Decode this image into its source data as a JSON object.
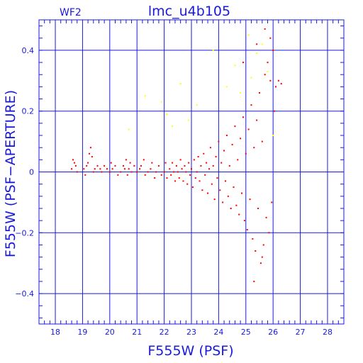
{
  "chart_data": {
    "type": "scatter",
    "chip_label": "WF2",
    "title": "lmc_u4b105",
    "xlabel": "F555W (PSF)",
    "ylabel": "F555W (PSF−APERTURE)",
    "xlim": [
      17.4,
      28.6
    ],
    "ylim": [
      -0.5,
      0.5
    ],
    "x_ticks": [
      "18",
      "19",
      "20",
      "21",
      "22",
      "23",
      "24",
      "25",
      "26",
      "27",
      "28"
    ],
    "y_ticks": [
      "0.4",
      "0.2",
      "0",
      "−0.2",
      "−0.4"
    ],
    "x_tick_values": [
      18,
      19,
      20,
      21,
      22,
      23,
      24,
      25,
      26,
      27,
      28
    ],
    "y_tick_values": [
      0.4,
      0.2,
      0,
      -0.2,
      -0.4
    ],
    "grid": true,
    "minor_ticks": true,
    "axis_color": "#1a1adc",
    "series": [
      {
        "color": "#ff0000",
        "marker_size": 2,
        "points": [
          [
            18.6,
            0.01
          ],
          [
            18.65,
            0.04
          ],
          [
            18.7,
            0.03
          ],
          [
            18.75,
            0.02
          ],
          [
            18.8,
            0.0
          ],
          [
            19.05,
            0.01
          ],
          [
            19.1,
            -0.01
          ],
          [
            19.15,
            0.02
          ],
          [
            19.2,
            0.03
          ],
          [
            19.25,
            0.06
          ],
          [
            19.3,
            0.08
          ],
          [
            19.35,
            0.05
          ],
          [
            19.4,
            0.0
          ],
          [
            19.45,
            0.01
          ],
          [
            19.55,
            0.02
          ],
          [
            19.65,
            0.01
          ],
          [
            19.7,
            0.0
          ],
          [
            19.8,
            0.02
          ],
          [
            19.9,
            0.01
          ],
          [
            20.0,
            0.0
          ],
          [
            20.05,
            0.03
          ],
          [
            20.1,
            0.01
          ],
          [
            20.2,
            0.02
          ],
          [
            20.3,
            -0.01
          ],
          [
            20.4,
            0.0
          ],
          [
            20.5,
            0.02
          ],
          [
            20.55,
            0.01
          ],
          [
            20.6,
            0.04
          ],
          [
            20.65,
            -0.01
          ],
          [
            20.7,
            0.01
          ],
          [
            20.75,
            0.03
          ],
          [
            20.8,
            0.0
          ],
          [
            20.9,
            0.02
          ],
          [
            21.0,
            0.0
          ],
          [
            21.1,
            0.01
          ],
          [
            21.15,
            0.02
          ],
          [
            21.25,
            0.04
          ],
          [
            21.3,
            -0.01
          ],
          [
            21.4,
            0.0
          ],
          [
            21.5,
            0.01
          ],
          [
            21.55,
            0.03
          ],
          [
            21.65,
            -0.02
          ],
          [
            21.7,
            0.0
          ],
          [
            21.8,
            0.02
          ],
          [
            21.9,
            -0.01
          ],
          [
            22.0,
            0.0
          ],
          [
            22.05,
            0.03
          ],
          [
            22.1,
            -0.02
          ],
          [
            22.2,
            0.01
          ],
          [
            22.25,
            -0.01
          ],
          [
            22.3,
            0.03
          ],
          [
            22.35,
            0.0
          ],
          [
            22.4,
            -0.03
          ],
          [
            22.45,
            0.02
          ],
          [
            22.5,
            0.0
          ],
          [
            22.55,
            -0.02
          ],
          [
            22.6,
            0.04
          ],
          [
            22.65,
            0.01
          ],
          [
            22.7,
            -0.03
          ],
          [
            22.75,
            0.02
          ],
          [
            22.8,
            0.0
          ],
          [
            22.85,
            -0.04
          ],
          [
            22.9,
            0.03
          ],
          [
            22.95,
            -0.01
          ],
          [
            23.0,
            0.01
          ],
          [
            23.05,
            -0.05
          ],
          [
            23.1,
            0.04
          ],
          [
            23.15,
            -0.02
          ],
          [
            23.2,
            0.0
          ],
          [
            23.25,
            0.05
          ],
          [
            23.3,
            -0.03
          ],
          [
            23.35,
            0.02
          ],
          [
            23.4,
            -0.06
          ],
          [
            23.45,
            0.06
          ],
          [
            23.5,
            -0.01
          ],
          [
            23.55,
            0.03
          ],
          [
            23.6,
            -0.07
          ],
          [
            23.65,
            0.01
          ],
          [
            23.7,
            0.08
          ],
          [
            23.75,
            -0.04
          ],
          [
            23.8,
            0.02
          ],
          [
            23.85,
            -0.09
          ],
          [
            23.9,
            0.05
          ],
          [
            23.95,
            -0.02
          ],
          [
            24.0,
            0.1
          ],
          [
            24.05,
            -0.06
          ],
          [
            24.1,
            0.03
          ],
          [
            24.15,
            -0.1
          ],
          [
            24.2,
            0.07
          ],
          [
            24.25,
            -0.03
          ],
          [
            24.3,
            0.12
          ],
          [
            24.35,
            -0.08
          ],
          [
            24.4,
            0.02
          ],
          [
            24.45,
            -0.12
          ],
          [
            24.5,
            0.09
          ],
          [
            24.55,
            -0.05
          ],
          [
            24.6,
            0.15
          ],
          [
            24.65,
            -0.11
          ],
          [
            24.7,
            0.04
          ],
          [
            24.75,
            -0.14
          ],
          [
            24.8,
            0.11
          ],
          [
            24.85,
            -0.07
          ],
          [
            24.9,
            0.18
          ],
          [
            24.95,
            -0.16
          ],
          [
            25.0,
            0.06
          ],
          [
            25.05,
            -0.19
          ],
          [
            25.1,
            0.14
          ],
          [
            25.15,
            -0.09
          ],
          [
            25.2,
            0.22
          ],
          [
            25.25,
            -0.22
          ],
          [
            25.3,
            0.08
          ],
          [
            25.35,
            -0.26
          ],
          [
            25.4,
            0.17
          ],
          [
            25.45,
            -0.12
          ],
          [
            25.5,
            0.26
          ],
          [
            25.55,
            -0.3
          ],
          [
            25.6,
            0.1
          ],
          [
            25.65,
            -0.24
          ],
          [
            25.7,
            0.32
          ],
          [
            25.75,
            -0.15
          ],
          [
            25.8,
            0.36
          ],
          [
            25.85,
            -0.2
          ],
          [
            25.9,
            0.3
          ],
          [
            25.95,
            -0.1
          ],
          [
            26.0,
            0.4
          ],
          [
            25.3,
            -0.36
          ],
          [
            25.6,
            -0.28
          ],
          [
            25.9,
            0.44
          ],
          [
            26.05,
            0.2
          ],
          [
            26.1,
            0.28
          ],
          [
            26.2,
            0.3
          ],
          [
            26.3,
            0.29
          ],
          [
            25.4,
            0.42
          ],
          [
            24.9,
            0.36
          ],
          [
            25.7,
            0.47
          ]
        ]
      },
      {
        "color": "#ffff00",
        "marker_size": 2,
        "points": [
          [
            20.7,
            0.14
          ],
          [
            21.3,
            0.25
          ],
          [
            21.9,
            0.23
          ],
          [
            22.1,
            0.19
          ],
          [
            22.3,
            0.15
          ],
          [
            22.6,
            0.29
          ],
          [
            22.9,
            0.17
          ],
          [
            23.2,
            0.22
          ],
          [
            23.8,
            0.4
          ],
          [
            24.3,
            0.28
          ],
          [
            24.6,
            0.35
          ],
          [
            25.1,
            0.45
          ],
          [
            25.4,
            0.39
          ],
          [
            25.6,
            0.42
          ],
          [
            25.8,
            0.33
          ],
          [
            26.0,
            0.12
          ],
          [
            25.2,
            0.31
          ],
          [
            24.8,
            0.26
          ]
        ]
      }
    ]
  }
}
